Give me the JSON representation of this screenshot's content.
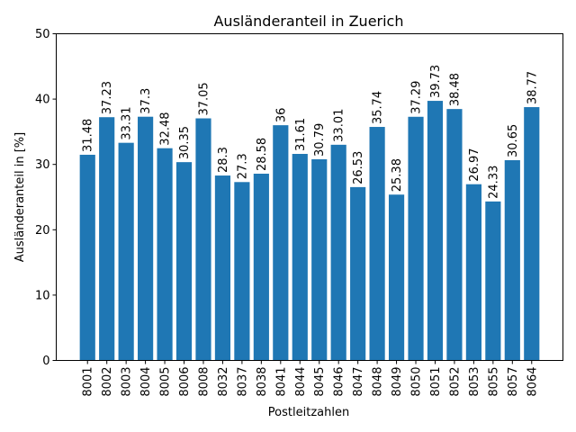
{
  "chart_data": {
    "type": "bar",
    "title": "Ausländeranteil in Zuerich",
    "xlabel": "Postleitzahlen",
    "ylabel": "Ausländeranteil in [%]",
    "ylim": [
      0,
      50
    ],
    "yticks": [
      0,
      10,
      20,
      30,
      40,
      50
    ],
    "grid": false,
    "bar_color": "#1f77b4",
    "categories": [
      "8001",
      "8002",
      "8003",
      "8004",
      "8005",
      "8006",
      "8008",
      "8032",
      "8037",
      "8038",
      "8041",
      "8044",
      "8045",
      "8046",
      "8047",
      "8048",
      "8049",
      "8050",
      "8051",
      "8052",
      "8053",
      "8055",
      "8057",
      "8064"
    ],
    "values": [
      31.48,
      37.23,
      33.31,
      37.3,
      32.48,
      30.35,
      37.05,
      28.3,
      27.3,
      28.58,
      36,
      31.61,
      30.79,
      33.01,
      26.53,
      35.74,
      25.38,
      37.29,
      39.73,
      38.48,
      26.97,
      24.33,
      30.65,
      38.77
    ],
    "data_labels": [
      "31.48",
      "37.23",
      "33.31",
      "37.3",
      "32.48",
      "30.35",
      "37.05",
      "28.3",
      "27.3",
      "28.58",
      "36",
      "31.61",
      "30.79",
      "33.01",
      "26.53",
      "35.74",
      "25.38",
      "37.29",
      "39.73",
      "38.48",
      "26.97",
      "24.33",
      "30.65",
      "38.77"
    ]
  }
}
